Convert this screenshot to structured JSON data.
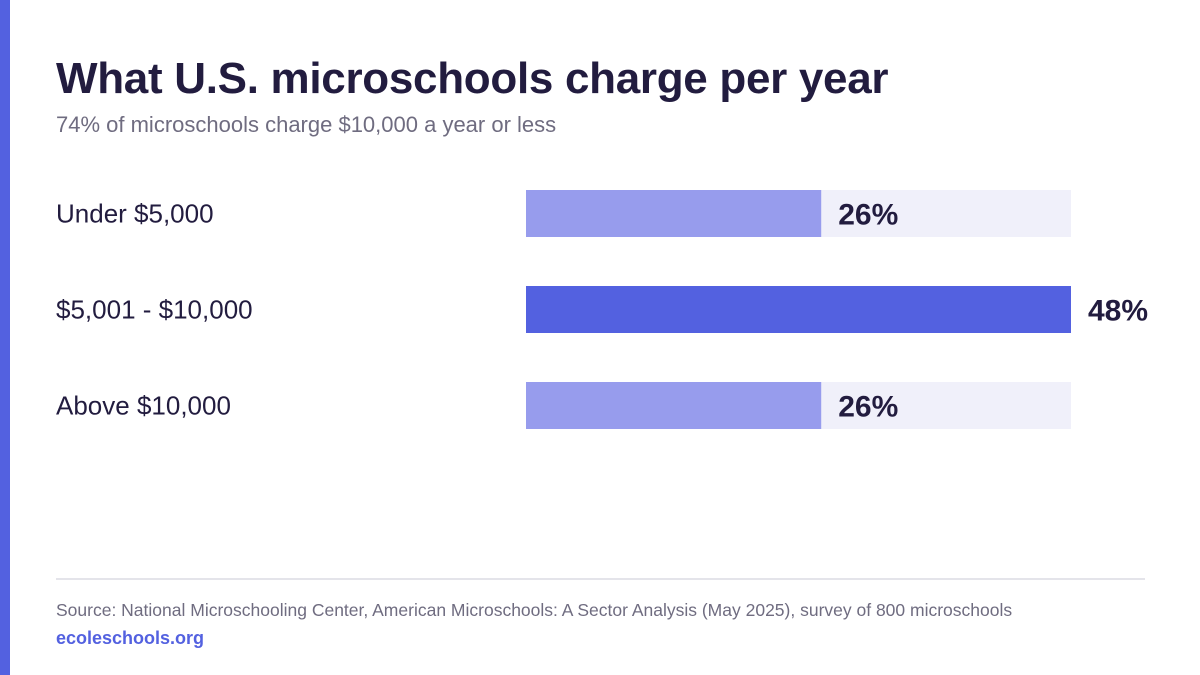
{
  "header": {
    "title": "What U.S. microschools charge per year",
    "subtitle": "74% of microschools charge $10,000 a year or less"
  },
  "chart_data": {
    "type": "bar",
    "orientation": "horizontal",
    "categories": [
      "Under $5,000",
      "$5,001 - $10,000",
      "Above $10,000"
    ],
    "values": [
      26,
      48,
      26
    ],
    "value_labels": [
      "26%",
      "48%",
      "26%"
    ],
    "highlight_index": 1,
    "xlim": [
      0,
      48
    ],
    "grid": false,
    "colors": {
      "bar": "#979ced",
      "bar_highlight": "#5361e0",
      "track": "#f0f0fa",
      "label": "#221c3f"
    }
  },
  "footer": {
    "source": "Source: National Microschooling Center, American Microschools: A Sector Analysis (May 2025), survey of 800 microschools",
    "site": "ecoleschools.org"
  },
  "colors": {
    "accent": "#5361e0",
    "text": "#221c3f",
    "muted": "#6f6c80"
  }
}
